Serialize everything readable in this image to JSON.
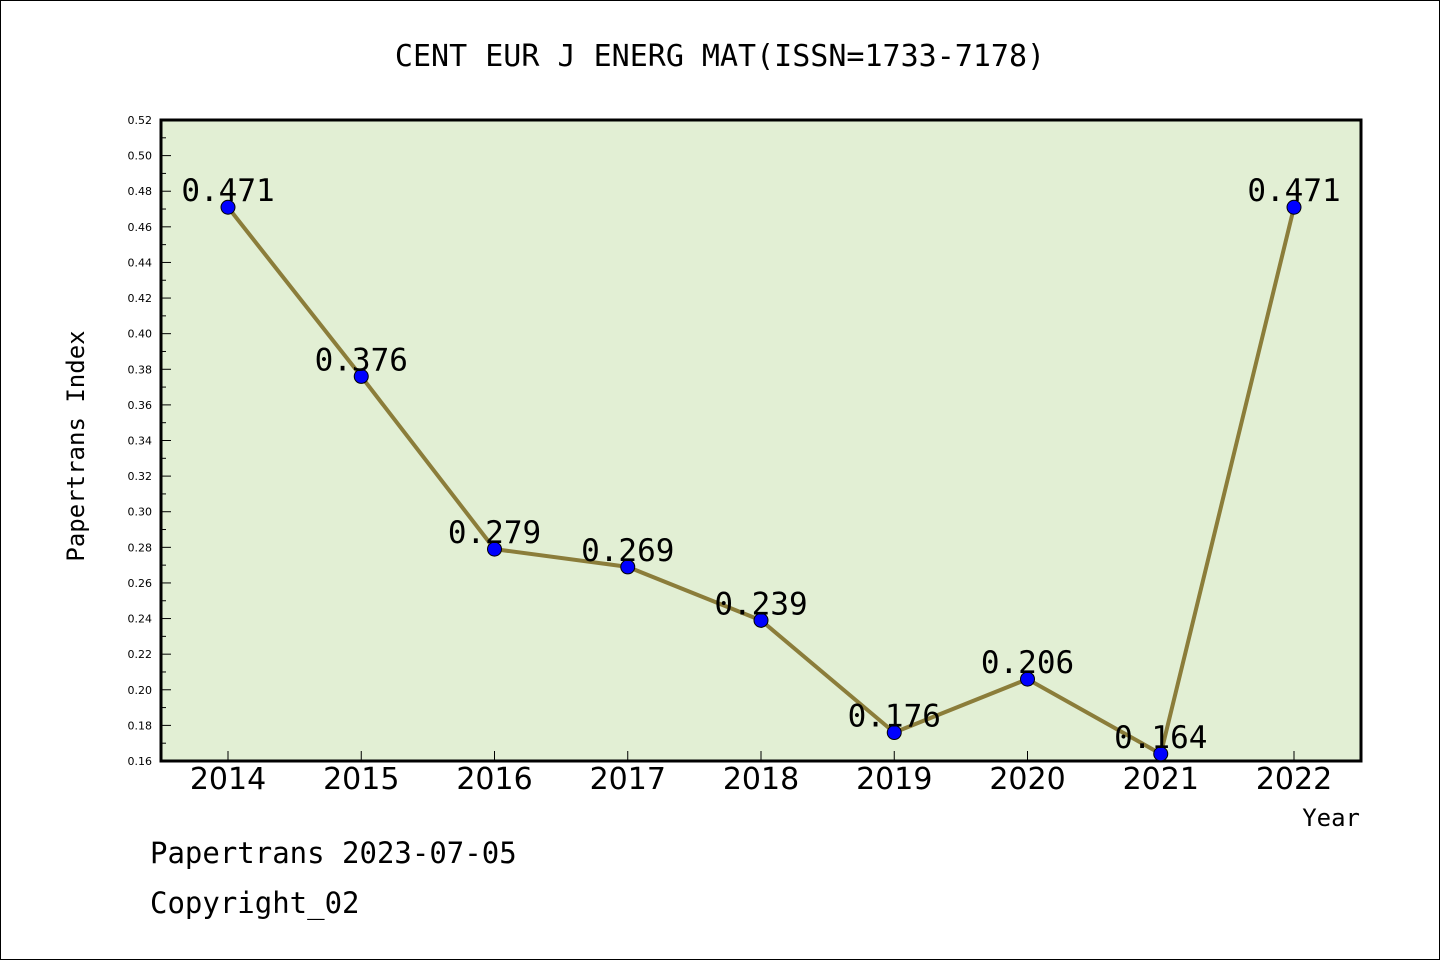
{
  "chart_data": {
    "type": "line",
    "title": "CENT EUR J ENERG MAT(ISSN=1733-7178)",
    "xlabel": "Year",
    "ylabel": "Papertrans Index",
    "categories": [
      "2014",
      "2015",
      "2016",
      "2017",
      "2018",
      "2019",
      "2020",
      "2021",
      "2022"
    ],
    "values": [
      0.471,
      0.376,
      0.279,
      0.269,
      0.239,
      0.176,
      0.206,
      0.164,
      0.471
    ],
    "value_labels": [
      "0.471",
      "0.376",
      "0.279",
      "0.269",
      "0.239",
      "0.176",
      "0.206",
      "0.164",
      "0.471"
    ],
    "ylim": [
      0.16,
      0.52
    ],
    "yticks": [
      "0.16",
      "0.18",
      "0.20",
      "0.22",
      "0.24",
      "0.26",
      "0.28",
      "0.30",
      "0.32",
      "0.34",
      "0.36",
      "0.38",
      "0.40",
      "0.42",
      "0.44",
      "0.46",
      "0.48",
      "0.50",
      "0.52"
    ],
    "grid": false,
    "colors": {
      "plot_background": "#e2efd4",
      "line": "#8b7d3a",
      "marker": "#0000ff"
    }
  },
  "footer": {
    "line1": "Papertrans 2023-07-05",
    "line2": "Copyright_02"
  }
}
